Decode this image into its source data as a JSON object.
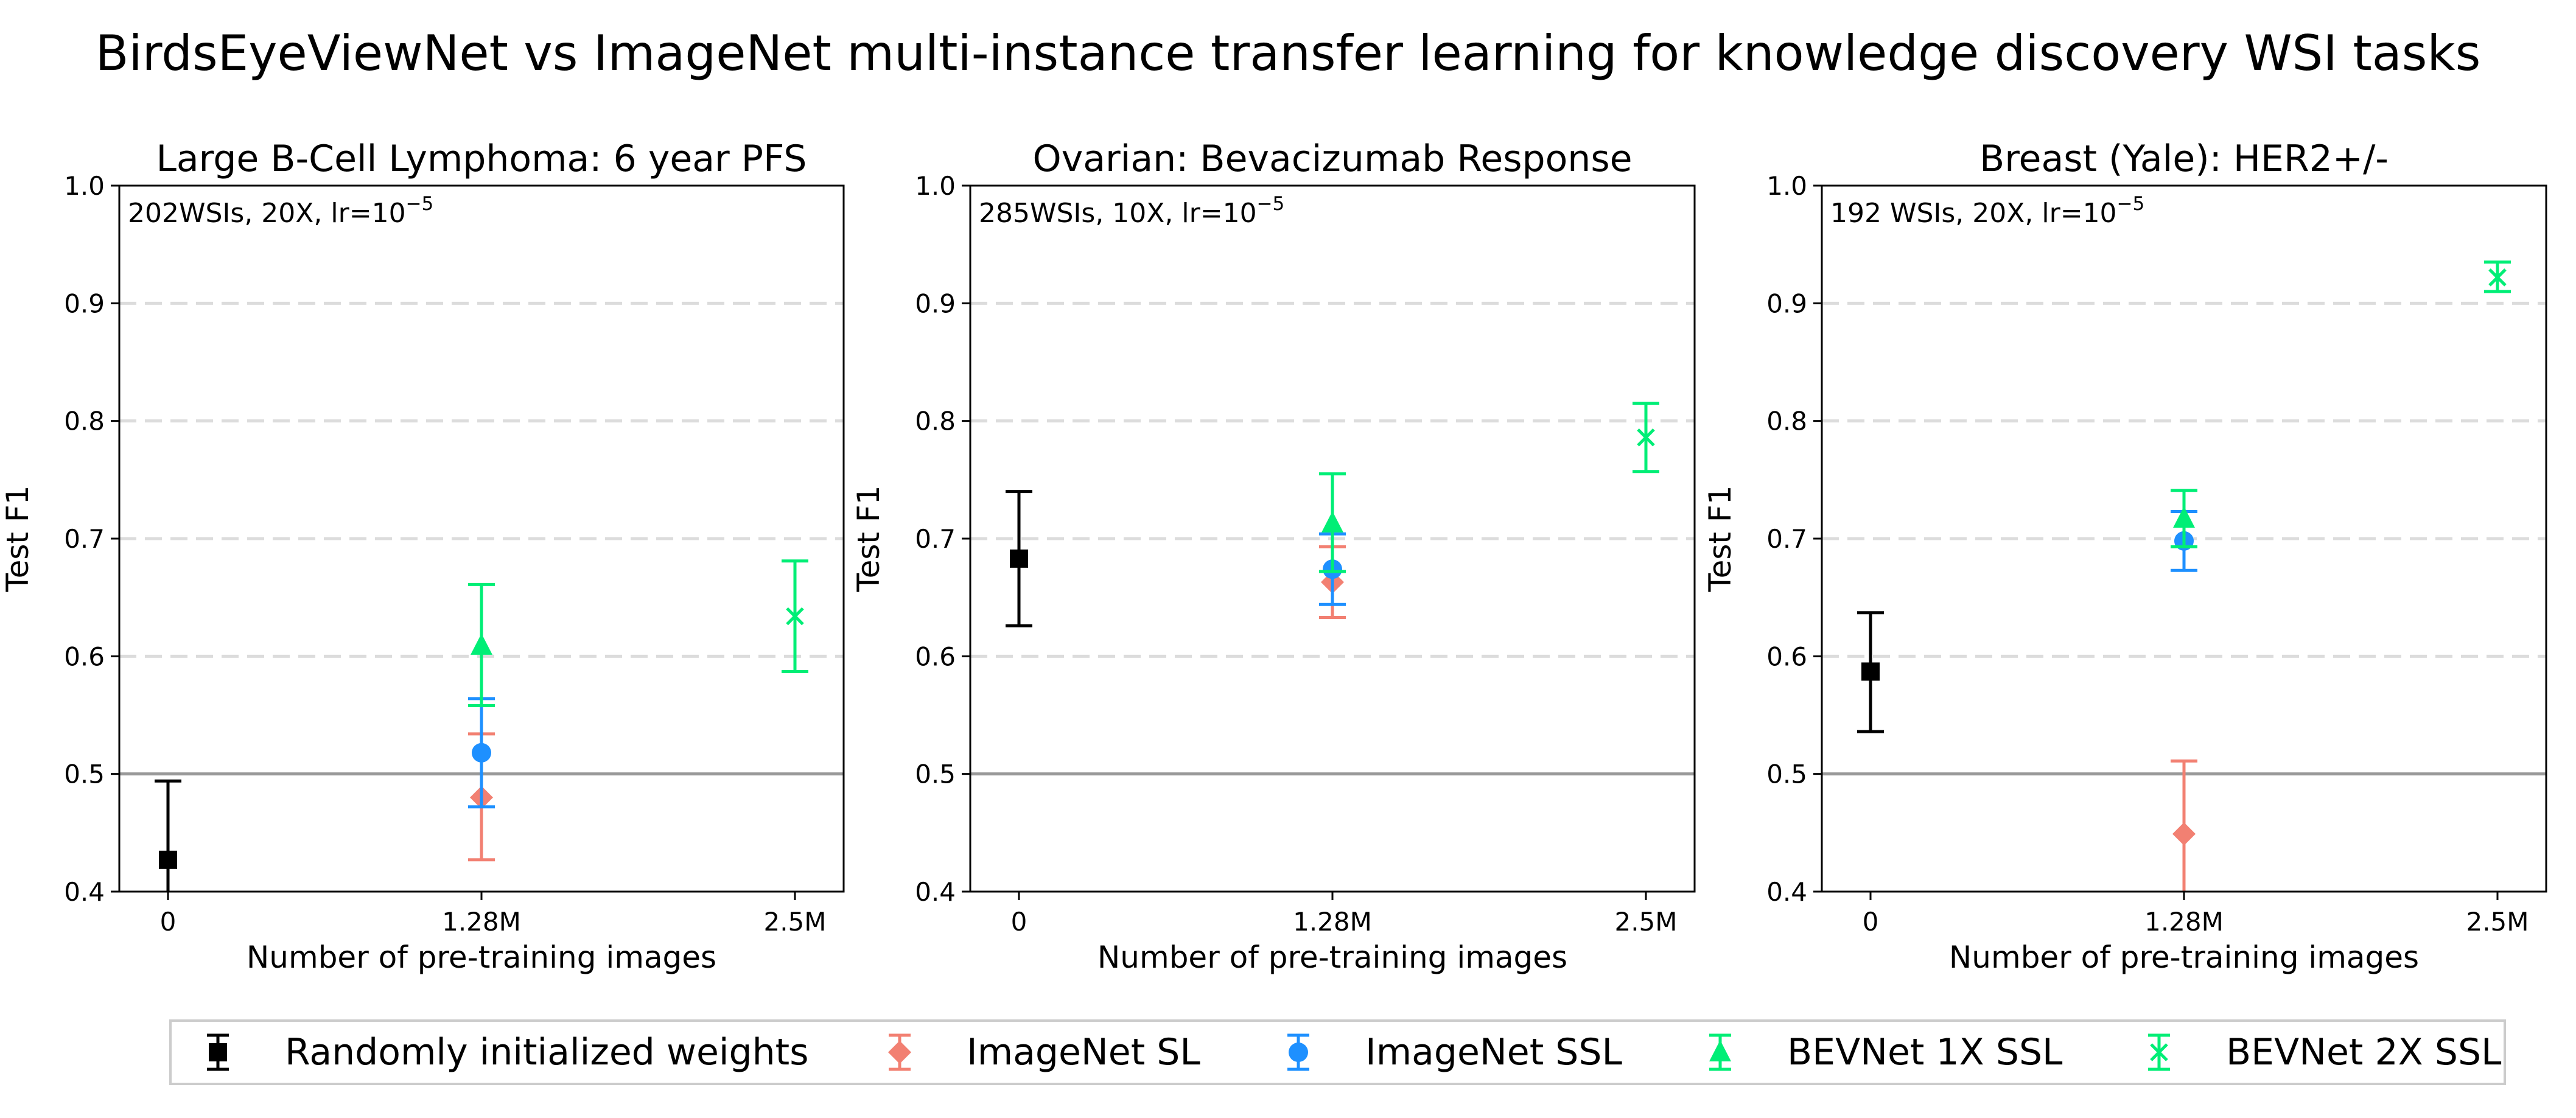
{
  "figure_title": "BirdsEyeViewNet vs ImageNet multi-instance transfer learning for knowledge discovery WSI tasks",
  "series_styles": [
    {
      "name": "Randomly initialized weights",
      "color": "#000000",
      "marker": "square"
    },
    {
      "name": "ImageNet SL",
      "color": "#f28072",
      "marker": "diamond"
    },
    {
      "name": "ImageNet SSL",
      "color": "#1e90ff",
      "marker": "circle"
    },
    {
      "name": "BEVNet 1X SSL",
      "color": "#00ee76",
      "marker": "triangle"
    },
    {
      "name": "BEVNet 2X SSL",
      "color": "#00ee76",
      "marker": "x"
    }
  ],
  "legend": {
    "placement": "bottom-center"
  },
  "chart_data": [
    {
      "type": "scatter",
      "title": "Large B-Cell Lymphoma: 6 year PFS",
      "annotation": "202WSIs, 20X, lr=10",
      "annotation_exp": "−5",
      "xlabel": "Number of pre-training images",
      "ylabel": "Test F1",
      "x_ticks": [
        "0",
        "1.28M",
        "2.5M"
      ],
      "ylim": [
        0.4,
        1.0
      ],
      "y_ticks": [
        "0.4",
        "0.5",
        "0.6",
        "0.7",
        "0.8",
        "0.9",
        "1.0"
      ],
      "grid": "horizontal dashed",
      "reference_line": 0.5,
      "series": [
        {
          "name": "Randomly initialized weights",
          "x": "0",
          "y": 0.427,
          "err_low": 0.36,
          "err_high": 0.494
        },
        {
          "name": "ImageNet SL",
          "x": "1.28M",
          "y": 0.48,
          "err_low": 0.427,
          "err_high": 0.534
        },
        {
          "name": "ImageNet SSL",
          "x": "1.28M",
          "y": 0.518,
          "err_low": 0.472,
          "err_high": 0.564
        },
        {
          "name": "BEVNet 1X SSL",
          "x": "1.28M",
          "y": 0.609,
          "err_low": 0.558,
          "err_high": 0.661
        },
        {
          "name": "BEVNet 2X SSL",
          "x": "2.5M",
          "y": 0.634,
          "err_low": 0.587,
          "err_high": 0.681
        }
      ]
    },
    {
      "type": "scatter",
      "title": "Ovarian: Bevacizumab Response",
      "annotation": "285WSIs, 10X, lr=10",
      "annotation_exp": "−5",
      "xlabel": "Number of pre-training images",
      "ylabel": "Test F1",
      "x_ticks": [
        "0",
        "1.28M",
        "2.5M"
      ],
      "ylim": [
        0.4,
        1.0
      ],
      "y_ticks": [
        "0.4",
        "0.5",
        "0.6",
        "0.7",
        "0.8",
        "0.9",
        "1.0"
      ],
      "grid": "horizontal dashed",
      "reference_line": 0.5,
      "series": [
        {
          "name": "Randomly initialized weights",
          "x": "0",
          "y": 0.683,
          "err_low": 0.626,
          "err_high": 0.74
        },
        {
          "name": "ImageNet SL",
          "x": "1.28M",
          "y": 0.663,
          "err_low": 0.633,
          "err_high": 0.693
        },
        {
          "name": "ImageNet SSL",
          "x": "1.28M",
          "y": 0.674,
          "err_low": 0.644,
          "err_high": 0.704
        },
        {
          "name": "BEVNet 1X SSL",
          "x": "1.28M",
          "y": 0.713,
          "err_low": 0.672,
          "err_high": 0.755
        },
        {
          "name": "BEVNet 2X SSL",
          "x": "2.5M",
          "y": 0.786,
          "err_low": 0.757,
          "err_high": 0.815
        }
      ]
    },
    {
      "type": "scatter",
      "title": "Breast (Yale): HER2+/-",
      "annotation": "192 WSIs, 20X, lr=10",
      "annotation_exp": "−5",
      "xlabel": "Number of pre-training images",
      "ylabel": "Test F1",
      "x_ticks": [
        "0",
        "1.28M",
        "2.5M"
      ],
      "ylim": [
        0.4,
        1.0
      ],
      "y_ticks": [
        "0.4",
        "0.5",
        "0.6",
        "0.7",
        "0.8",
        "0.9",
        "1.0"
      ],
      "grid": "horizontal dashed",
      "reference_line": 0.5,
      "series": [
        {
          "name": "Randomly initialized weights",
          "x": "0",
          "y": 0.587,
          "err_low": 0.536,
          "err_high": 0.637
        },
        {
          "name": "ImageNet SL",
          "x": "1.28M",
          "y": 0.449,
          "err_low": 0.387,
          "err_high": 0.511
        },
        {
          "name": "ImageNet SSL",
          "x": "1.28M",
          "y": 0.698,
          "err_low": 0.673,
          "err_high": 0.723
        },
        {
          "name": "BEVNet 1X SSL",
          "x": "1.28M",
          "y": 0.717,
          "err_low": 0.693,
          "err_high": 0.741
        },
        {
          "name": "BEVNet 2X SSL",
          "x": "2.5M",
          "y": 0.922,
          "err_low": 0.91,
          "err_high": 0.935
        }
      ]
    }
  ]
}
